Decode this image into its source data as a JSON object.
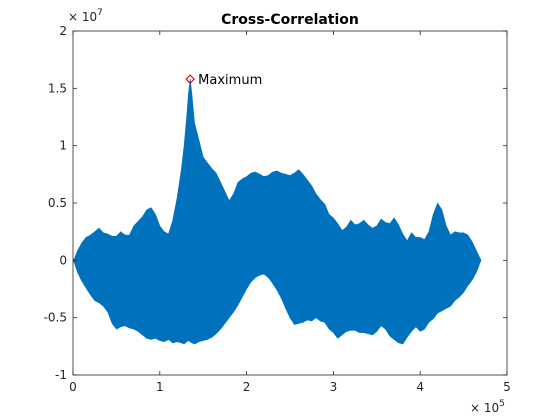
{
  "chart_data": {
    "type": "area",
    "title": "Cross-Correlation",
    "xlabel": "",
    "ylabel": "",
    "xlim": [
      0,
      500000
    ],
    "ylim": [
      -10000000,
      20000000
    ],
    "x_ticks": [
      0,
      1,
      2,
      3,
      4,
      5
    ],
    "y_ticks": [
      -1,
      -0.5,
      0,
      0.5,
      1,
      1.5,
      2
    ],
    "x_exponent_base": "× 10",
    "x_exponent_power": "5",
    "y_exponent_base": "× 10",
    "y_exponent_power": "7",
    "grid": false,
    "box": true,
    "series_color": "#0072BD",
    "envelope": {
      "x": [
        0,
        2000,
        5000,
        10000,
        15000,
        20000,
        25000,
        30000,
        35000,
        40000,
        45000,
        50000,
        55000,
        60000,
        65000,
        70000,
        75000,
        80000,
        85000,
        90000,
        95000,
        100000,
        105000,
        110000,
        115000,
        120000,
        125000,
        128000,
        131000,
        133000,
        135000,
        137000,
        140000,
        145000,
        150000,
        155000,
        160000,
        165000,
        170000,
        175000,
        180000,
        185000,
        190000,
        195000,
        200000,
        205000,
        210000,
        215000,
        220000,
        225000,
        230000,
        235000,
        240000,
        245000,
        250000,
        255000,
        260000,
        265000,
        270000,
        275000,
        280000,
        285000,
        290000,
        295000,
        300000,
        305000,
        310000,
        315000,
        320000,
        325000,
        330000,
        335000,
        340000,
        345000,
        350000,
        355000,
        360000,
        365000,
        370000,
        375000,
        380000,
        385000,
        390000,
        395000,
        400000,
        405000,
        410000,
        415000,
        420000,
        425000,
        430000,
        435000,
        440000,
        445000,
        450000,
        455000,
        460000,
        465000,
        470000
      ],
      "upper": [
        0.0,
        200000,
        800000,
        1500000,
        2000000,
        2200000,
        2500000,
        2800000,
        2400000,
        2300000,
        2100000,
        2100000,
        2500000,
        2200000,
        2200000,
        3000000,
        3400000,
        3800000,
        4400000,
        4600000,
        4000000,
        3000000,
        2500000,
        2300000,
        3500000,
        5500000,
        8000000,
        10000000,
        12500000,
        14500000,
        15800000,
        14500000,
        12000000,
        10500000,
        9000000,
        8500000,
        8000000,
        7600000,
        6800000,
        6000000,
        5200000,
        5800000,
        6800000,
        7100000,
        7300000,
        7600000,
        7700000,
        7500000,
        7300000,
        7400000,
        7700000,
        7800000,
        7600000,
        7500000,
        7400000,
        7600000,
        7900000,
        7500000,
        7000000,
        6500000,
        5800000,
        5300000,
        4900000,
        4000000,
        3700000,
        3200000,
        2600000,
        2900000,
        3500000,
        3100000,
        3200000,
        3500000,
        3100000,
        2800000,
        3000000,
        3600000,
        3300000,
        3200000,
        3700000,
        3100000,
        2300000,
        1700000,
        2400000,
        2000000,
        2000000,
        1800000,
        2500000,
        4000000,
        5000000,
        4400000,
        3000000,
        2200000,
        2500000,
        2400000,
        2400000,
        2200000,
        1600000,
        800000,
        0
      ],
      "lower": [
        0.0,
        -300000,
        -1000000,
        -1800000,
        -2400000,
        -3000000,
        -3500000,
        -3700000,
        -4000000,
        -4500000,
        -5500000,
        -6000000,
        -5800000,
        -5700000,
        -5900000,
        -6000000,
        -6200000,
        -6500000,
        -6800000,
        -6900000,
        -6800000,
        -7000000,
        -7100000,
        -6900000,
        -7200000,
        -7100000,
        -7200000,
        -7300000,
        -7100000,
        -7000000,
        -7100000,
        -7200000,
        -7300000,
        -7100000,
        -7000000,
        -6900000,
        -6700000,
        -6400000,
        -6000000,
        -5500000,
        -5000000,
        -4500000,
        -3900000,
        -3200000,
        -2500000,
        -1900000,
        -1500000,
        -1300000,
        -1200000,
        -1500000,
        -2000000,
        -2600000,
        -3300000,
        -4200000,
        -5000000,
        -5600000,
        -5500000,
        -5400000,
        -5200000,
        -5300000,
        -5000000,
        -5300000,
        -5400000,
        -6000000,
        -6300000,
        -6800000,
        -6500000,
        -6200000,
        -6100000,
        -6100000,
        -6300000,
        -6300000,
        -6400000,
        -6500000,
        -6200000,
        -5700000,
        -6000000,
        -6600000,
        -6900000,
        -7200000,
        -7300000,
        -6700000,
        -6200000,
        -5800000,
        -6200000,
        -6000000,
        -5400000,
        -5100000,
        -4600000,
        -4400000,
        -4200000,
        -4000000,
        -3500000,
        -3200000,
        -2800000,
        -2200000,
        -1700000,
        -1000000,
        0
      ]
    },
    "annotation": {
      "label": "Maximum",
      "x": 135000,
      "y": 15800000
    }
  }
}
